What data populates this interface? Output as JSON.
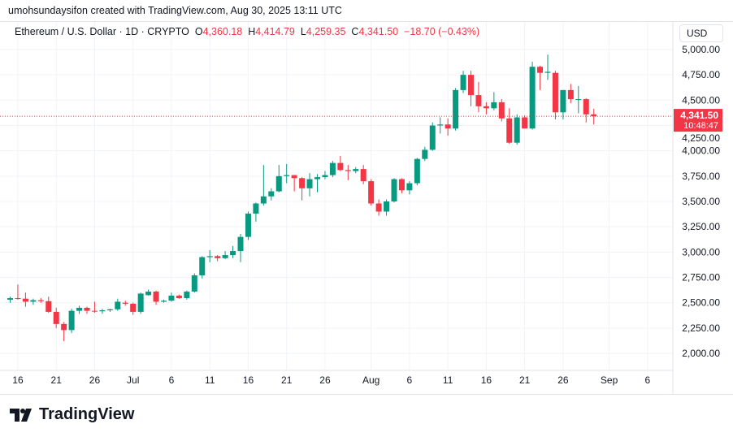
{
  "credit": "umohsundaysifon created with TradingView.com, Aug 30, 2025 13:11 UTC",
  "legend": {
    "symbol": "Ethereum / U.S. Dollar · 1D · CRYPTO",
    "o_label": "O",
    "o": "4,360.18",
    "h_label": "H",
    "h": "4,414.79",
    "l_label": "L",
    "l": "4,259.35",
    "c_label": "C",
    "c": "4,341.50",
    "change": "−18.70 (−0.43%)"
  },
  "currency": "USD",
  "last_price": {
    "price": "4,341.50",
    "countdown": "10:48:47",
    "color": "#f23645"
  },
  "logo": "TradingView",
  "colors": {
    "up": "#089981",
    "down": "#f23645"
  },
  "chart_data": {
    "type": "candlestick",
    "title": "Ethereum / U.S. Dollar · 1D · CRYPTO",
    "start_date": "2025-06-15",
    "end_date": "2025-08-30",
    "ylim": [
      1850,
      5100
    ],
    "yticks": [
      2000,
      2250,
      2500,
      2750,
      3000,
      3250,
      3500,
      3750,
      4000,
      4250,
      4500,
      4750,
      5000
    ],
    "ytick_labels": [
      "2,000.00",
      "2,250.00",
      "2,500.00",
      "2,750.00",
      "3,000.00",
      "3,250.00",
      "3,500.00",
      "3,750.00",
      "4,000.00",
      "4,250.00",
      "4,500.00",
      "4,750.00",
      "5,000.00"
    ],
    "xticks": [
      {
        "day": 1,
        "label": "16"
      },
      {
        "day": 6,
        "label": "21"
      },
      {
        "day": 11,
        "label": "26"
      },
      {
        "day": 16,
        "label": "Jul"
      },
      {
        "day": 21,
        "label": "6"
      },
      {
        "day": 26,
        "label": "11"
      },
      {
        "day": 31,
        "label": "16"
      },
      {
        "day": 36,
        "label": "21"
      },
      {
        "day": 41,
        "label": "26"
      },
      {
        "day": 47,
        "label": "Aug"
      },
      {
        "day": 52,
        "label": "6"
      },
      {
        "day": 57,
        "label": "11"
      },
      {
        "day": 62,
        "label": "16"
      },
      {
        "day": 67,
        "label": "21"
      },
      {
        "day": 72,
        "label": "26"
      },
      {
        "day": 78,
        "label": "Sep"
      },
      {
        "day": 83,
        "label": "6"
      }
    ],
    "ohlc": [
      [
        2530,
        2560,
        2500,
        2545
      ],
      [
        2545,
        2680,
        2530,
        2540
      ],
      [
        2540,
        2600,
        2460,
        2510
      ],
      [
        2510,
        2540,
        2480,
        2525
      ],
      [
        2525,
        2545,
        2500,
        2515
      ],
      [
        2515,
        2560,
        2400,
        2410
      ],
      [
        2410,
        2450,
        2250,
        2290
      ],
      [
        2290,
        2310,
        2120,
        2230
      ],
      [
        2230,
        2440,
        2200,
        2420
      ],
      [
        2420,
        2470,
        2390,
        2450
      ],
      [
        2450,
        2460,
        2390,
        2420
      ],
      [
        2420,
        2510,
        2400,
        2415
      ],
      [
        2415,
        2440,
        2390,
        2425
      ],
      [
        2425,
        2440,
        2410,
        2435
      ],
      [
        2435,
        2540,
        2420,
        2510
      ],
      [
        2500,
        2520,
        2470,
        2490
      ],
      [
        2490,
        2500,
        2380,
        2410
      ],
      [
        2410,
        2600,
        2390,
        2590
      ],
      [
        2575,
        2630,
        2570,
        2610
      ],
      [
        2610,
        2620,
        2480,
        2510
      ],
      [
        2510,
        2530,
        2500,
        2520
      ],
      [
        2520,
        2600,
        2510,
        2570
      ],
      [
        2570,
        2580,
        2540,
        2545
      ],
      [
        2545,
        2620,
        2530,
        2610
      ],
      [
        2610,
        2790,
        2600,
        2770
      ],
      [
        2770,
        2960,
        2740,
        2950
      ],
      [
        2950,
        3020,
        2900,
        2960
      ],
      [
        2960,
        2970,
        2910,
        2940
      ],
      [
        2940,
        3010,
        2930,
        2970
      ],
      [
        2970,
        3060,
        2940,
        3010
      ],
      [
        3010,
        3180,
        2900,
        3150
      ],
      [
        3150,
        3400,
        3120,
        3380
      ],
      [
        3380,
        3490,
        3300,
        3480
      ],
      [
        3480,
        3860,
        3460,
        3550
      ],
      [
        3550,
        3630,
        3510,
        3600
      ],
      [
        3600,
        3860,
        3590,
        3750
      ],
      [
        3750,
        3870,
        3680,
        3760
      ],
      [
        3760,
        3760,
        3600,
        3730
      ],
      [
        3730,
        3740,
        3510,
        3630
      ],
      [
        3630,
        3780,
        3550,
        3720
      ],
      [
        3720,
        3770,
        3590,
        3740
      ],
      [
        3740,
        3800,
        3720,
        3760
      ],
      [
        3760,
        3900,
        3740,
        3880
      ],
      [
        3880,
        3950,
        3800,
        3810
      ],
      [
        3810,
        3860,
        3710,
        3800
      ],
      [
        3800,
        3840,
        3780,
        3820
      ],
      [
        3820,
        3860,
        3670,
        3700
      ],
      [
        3700,
        3720,
        3460,
        3480
      ],
      [
        3480,
        3520,
        3360,
        3400
      ],
      [
        3400,
        3520,
        3360,
        3500
      ],
      [
        3500,
        3730,
        3490,
        3720
      ],
      [
        3720,
        3730,
        3580,
        3610
      ],
      [
        3610,
        3700,
        3570,
        3680
      ],
      [
        3680,
        3930,
        3660,
        3920
      ],
      [
        3920,
        4040,
        3900,
        4010
      ],
      [
        4010,
        4280,
        4000,
        4250
      ],
      [
        4250,
        4330,
        4170,
        4260
      ],
      [
        4260,
        4320,
        4150,
        4220
      ],
      [
        4220,
        4620,
        4200,
        4600
      ],
      [
        4600,
        4790,
        4570,
        4750
      ],
      [
        4750,
        4790,
        4440,
        4550
      ],
      [
        4550,
        4680,
        4380,
        4440
      ],
      [
        4440,
        4480,
        4360,
        4420
      ],
      [
        4420,
        4580,
        4400,
        4480
      ],
      [
        4480,
        4510,
        4290,
        4320
      ],
      [
        4320,
        4420,
        4070,
        4080
      ],
      [
        4080,
        4360,
        4060,
        4330
      ],
      [
        4330,
        4350,
        4220,
        4220
      ],
      [
        4220,
        4880,
        4210,
        4830
      ],
      [
        4830,
        4840,
        4600,
        4770
      ],
      [
        4770,
        4950,
        4700,
        4780
      ],
      [
        4770,
        4790,
        4310,
        4380
      ],
      [
        4380,
        4600,
        4310,
        4600
      ],
      [
        4600,
        4660,
        4470,
        4510
      ],
      [
        4510,
        4640,
        4370,
        4510
      ],
      [
        4510,
        4520,
        4280,
        4360
      ],
      [
        4360.18,
        4414.79,
        4259.35,
        4341.5
      ]
    ]
  }
}
